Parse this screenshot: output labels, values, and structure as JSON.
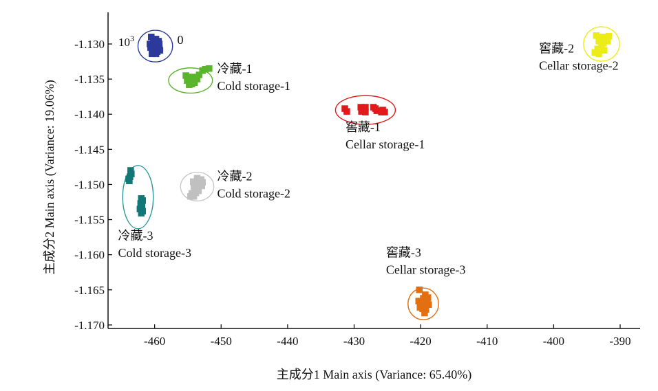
{
  "chart_data": {
    "type": "scatter",
    "xlabel": "主成分1 Main axis (Variance: 65.40%)",
    "ylabel": "主成分2 Main axis (Variance: 19.06%)",
    "xlim": [
      -467,
      -387
    ],
    "ylim": [
      -1.1705,
      -1.1255
    ],
    "xticks": [
      -460,
      -450,
      -440,
      -430,
      -420,
      -410,
      -400,
      -390
    ],
    "xtick_labels": [
      "-460",
      "-450",
      "-440",
      "-430",
      "-420",
      "-410",
      "-400",
      "-390"
    ],
    "yticks": [
      -1.13,
      -1.135,
      -1.14,
      -1.145,
      -1.15,
      -1.155,
      -1.16,
      -1.165,
      -1.17
    ],
    "ytick_labels": [
      "-1.130",
      "-1.135",
      "-1.140",
      "-1.145",
      "-1.150",
      "-1.155",
      "-1.160",
      "-1.165",
      "-1.170"
    ],
    "y_scale_exponent_label": {
      "base": "10",
      "exp": "3"
    },
    "grid": false,
    "legend": "none",
    "series": [
      {
        "name": "0",
        "label_lines": [
          "0"
        ],
        "color": "#2b3a9b",
        "ellipse_color": "#2b3a9b",
        "ellipse": {
          "cx": -459.9,
          "cy": -1.1303,
          "rx": 2.6,
          "ry": 0.00225
        },
        "label_anchor": [
          -456.6,
          -1.13
        ],
        "points": [
          [
            -460.5,
            -1.129
          ],
          [
            -459.8,
            -1.1293
          ],
          [
            -460.2,
            -1.1297
          ],
          [
            -459.4,
            -1.1296
          ],
          [
            -460.7,
            -1.13
          ],
          [
            -460.0,
            -1.1301
          ],
          [
            -459.3,
            -1.13
          ],
          [
            -460.6,
            -1.1305
          ],
          [
            -459.9,
            -1.1306
          ],
          [
            -459.3,
            -1.1306
          ],
          [
            -460.3,
            -1.131
          ],
          [
            -459.6,
            -1.1311
          ],
          [
            -459.2,
            -1.1309
          ],
          [
            -460.4,
            -1.1314
          ],
          [
            -459.8,
            -1.1314
          ]
        ]
      },
      {
        "name": "冷藏-1 Cold storage-1",
        "label_lines": [
          "冷藏-1",
          "Cold storage-1"
        ],
        "color": "#5bb52c",
        "ellipse_color": "#5bb52c",
        "ellipse": {
          "cx": -454.6,
          "cy": -1.1352,
          "rx": 3.3,
          "ry": 0.0018
        },
        "label_anchor": [
          -450.6,
          -1.1341
        ],
        "points": [
          [
            -455.3,
            -1.1345
          ],
          [
            -454.8,
            -1.1347
          ],
          [
            -454.3,
            -1.135
          ],
          [
            -455.1,
            -1.1352
          ],
          [
            -454.6,
            -1.1354
          ],
          [
            -454.0,
            -1.1355
          ],
          [
            -454.8,
            -1.1358
          ],
          [
            -454.4,
            -1.1357
          ],
          [
            -453.6,
            -1.135
          ],
          [
            -453.3,
            -1.1344
          ],
          [
            -452.8,
            -1.1338
          ],
          [
            -452.4,
            -1.1336
          ],
          [
            -451.8,
            -1.1335
          ],
          [
            -453.9,
            -1.1347
          ]
        ]
      },
      {
        "name": "窖藏-1 Cellar storage-1",
        "label_lines": [
          "窖藏-1",
          "Cellar storage-1"
        ],
        "color": "#e01b1b",
        "ellipse_color": "#e01b1b",
        "ellipse": {
          "cx": -428.3,
          "cy": -1.1394,
          "rx": 4.5,
          "ry": 0.00205
        },
        "label_anchor": [
          -431.3,
          -1.1424
        ],
        "points": [
          [
            -431.4,
            -1.1392
          ],
          [
            -431.1,
            -1.1396
          ],
          [
            -429.0,
            -1.139
          ],
          [
            -428.6,
            -1.1393
          ],
          [
            -428.3,
            -1.139
          ],
          [
            -428.9,
            -1.1396
          ],
          [
            -428.3,
            -1.1397
          ],
          [
            -427.1,
            -1.139
          ],
          [
            -426.8,
            -1.1392
          ],
          [
            -426.6,
            -1.1395
          ],
          [
            -425.7,
            -1.1394
          ],
          [
            -425.4,
            -1.1397
          ],
          [
            -425.9,
            -1.1397
          ]
        ]
      },
      {
        "name": "窖藏-2 Cellar storage-2",
        "label_lines": [
          "窖藏-2",
          "Cellar storage-2"
        ],
        "color": "#ecec1a",
        "ellipse_color": "#ecec1a",
        "ellipse": {
          "cx": -392.8,
          "cy": -1.13,
          "rx": 2.7,
          "ry": 0.00245
        },
        "label_anchor": [
          -402.2,
          -1.1312
        ],
        "points": [
          [
            -393.6,
            -1.1288
          ],
          [
            -393.0,
            -1.1292
          ],
          [
            -392.6,
            -1.129
          ],
          [
            -391.7,
            -1.1289
          ],
          [
            -393.2,
            -1.1296
          ],
          [
            -392.5,
            -1.1299
          ],
          [
            -391.9,
            -1.1296
          ],
          [
            -392.8,
            -1.1303
          ],
          [
            -393.4,
            -1.1307
          ],
          [
            -392.4,
            -1.1309
          ],
          [
            -393.8,
            -1.1312
          ],
          [
            -393.2,
            -1.1314
          ]
        ]
      },
      {
        "name": "冷藏-2 Cold storage-2",
        "label_lines": [
          "冷藏-2",
          "Cold storage-2"
        ],
        "color": "#c0c0c0",
        "ellipse_color": "#c8c8c8",
        "ellipse": {
          "cx": -453.6,
          "cy": -1.1503,
          "rx": 2.5,
          "ry": 0.00205
        },
        "label_anchor": [
          -450.6,
          -1.1494
        ],
        "points": [
          [
            -453.6,
            -1.1491
          ],
          [
            -453.0,
            -1.1493
          ],
          [
            -454.2,
            -1.1496
          ],
          [
            -453.4,
            -1.1498
          ],
          [
            -452.8,
            -1.1497
          ],
          [
            -454.1,
            -1.1503
          ],
          [
            -453.5,
            -1.1503
          ],
          [
            -452.9,
            -1.1502
          ],
          [
            -454.0,
            -1.1508
          ],
          [
            -453.4,
            -1.1509
          ],
          [
            -454.4,
            -1.1513
          ],
          [
            -453.8,
            -1.1512
          ],
          [
            -454.6,
            -1.1517
          ],
          [
            -454.1,
            -1.1517
          ]
        ]
      },
      {
        "name": "冷藏-3 Cold storage-3",
        "label_lines": [
          "冷藏-3",
          "Cold storage-3"
        ],
        "color": "#127777",
        "ellipse_color": "#2a9a9a",
        "ellipse": {
          "cx": -462.5,
          "cy": -1.1518,
          "rx": 2.3,
          "ry": 0.0045
        },
        "label_anchor": [
          -465.5,
          -1.1579
        ],
        "points": [
          [
            -463.6,
            -1.148
          ],
          [
            -463.5,
            -1.1485
          ],
          [
            -463.7,
            -1.1489
          ],
          [
            -463.9,
            -1.1492
          ],
          [
            -463.8,
            -1.1495
          ],
          [
            -462.0,
            -1.152
          ],
          [
            -461.8,
            -1.1523
          ],
          [
            -462.1,
            -1.1527
          ],
          [
            -461.9,
            -1.1531
          ],
          [
            -462.2,
            -1.1535
          ],
          [
            -461.8,
            -1.1538
          ],
          [
            -462.0,
            -1.1541
          ]
        ]
      },
      {
        "name": "窖藏-3 Cellar storage-3",
        "label_lines": [
          "窖藏-3",
          "Cellar storage-3"
        ],
        "color": "#e36f10",
        "ellipse_color": "#e36f10",
        "ellipse": {
          "cx": -419.6,
          "cy": -1.167,
          "rx": 2.3,
          "ry": 0.00225
        },
        "label_anchor": [
          -425.2,
          -1.1603
        ],
        "points": [
          [
            -420.2,
            -1.165
          ],
          [
            -419.3,
            -1.1657
          ],
          [
            -419.6,
            -1.1662
          ],
          [
            -418.9,
            -1.1661
          ],
          [
            -420.3,
            -1.1666
          ],
          [
            -419.8,
            -1.1668
          ],
          [
            -419.0,
            -1.1668
          ],
          [
            -420.0,
            -1.1672
          ],
          [
            -419.5,
            -1.1673
          ],
          [
            -418.8,
            -1.1671
          ],
          [
            -419.7,
            -1.1677
          ],
          [
            -419.2,
            -1.1678
          ],
          [
            -419.4,
            -1.1683
          ],
          [
            -420.1,
            -1.1675
          ]
        ]
      }
    ]
  }
}
